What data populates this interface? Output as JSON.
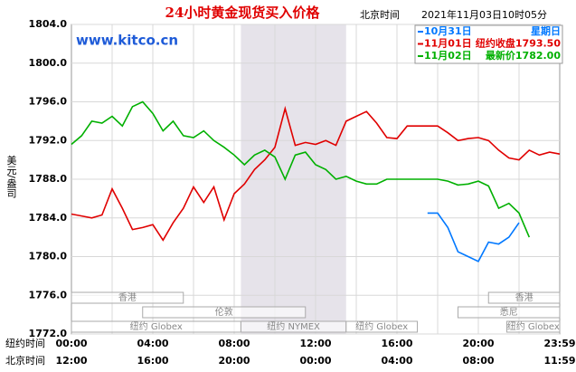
{
  "chart_data": {
    "type": "line",
    "title": "24小时黄金现货买入价格",
    "subtitle": "北京时间",
    "timestamp": "2021年11月03日10时05分",
    "watermark": "www.kitco.cn",
    "y_label": "美元/盎司",
    "x_row_label": "纽约时间",
    "x2_row_label": "北京时间",
    "xlim": [
      0,
      24
    ],
    "ylim": [
      1772,
      1804
    ],
    "yticks": [
      {
        "value": 1772,
        "label": "1772.0"
      },
      {
        "value": 1776,
        "label": "1776.0"
      },
      {
        "value": 1780,
        "label": "1780.0"
      },
      {
        "value": 1784,
        "label": "1784.0"
      },
      {
        "value": 1788,
        "label": "1788.0"
      },
      {
        "value": 1792,
        "label": "1792.0"
      },
      {
        "value": 1796,
        "label": "1796.0"
      },
      {
        "value": 1800,
        "label": "1800.0"
      },
      {
        "value": 1804,
        "label": "1804.0"
      }
    ],
    "xgrid": [
      2,
      4,
      6,
      8,
      10,
      12,
      14,
      16,
      18,
      20,
      22
    ],
    "xticks": [
      {
        "value": 0,
        "label": "00:00"
      },
      {
        "value": 4,
        "label": "04:00"
      },
      {
        "value": 8,
        "label": "08:00"
      },
      {
        "value": 12,
        "label": "12:00"
      },
      {
        "value": 16,
        "label": "16:00"
      },
      {
        "value": 20,
        "label": "20:00"
      },
      {
        "value": 24,
        "label": "23:59"
      }
    ],
    "x2ticks": [
      {
        "value": 0,
        "label": "12:00"
      },
      {
        "value": 4,
        "label": "16:00"
      },
      {
        "value": 8,
        "label": "20:00"
      },
      {
        "value": 12,
        "label": "00:00"
      },
      {
        "value": 16,
        "label": "04:00"
      },
      {
        "value": 20,
        "label": "08:00"
      },
      {
        "value": 24,
        "label": "11:59"
      }
    ],
    "shaded_span": [
      8.33,
      13.5
    ],
    "sessions": [
      {
        "name": "香港",
        "start": 0,
        "end": 5.5,
        "row": 0
      },
      {
        "name": "香港",
        "start": 20.5,
        "end": 24,
        "row": 0
      },
      {
        "name": "伦敦",
        "start": 3.5,
        "end": 11.5,
        "row": 1
      },
      {
        "name": "悉尼",
        "start": 19,
        "end": 24,
        "row": 1
      },
      {
        "name": "纽约 Globex",
        "start": 0,
        "end": 8.33,
        "row": 2
      },
      {
        "name": "纽约 NYMEX",
        "start": 8.33,
        "end": 13.5,
        "row": 2
      },
      {
        "name": "纽约 Globex",
        "start": 13.5,
        "end": 17,
        "row": 2
      },
      {
        "name": "纽约 Globex",
        "start": 21.4,
        "end": 24,
        "row": 2
      }
    ],
    "x": [
      0,
      0.5,
      1,
      1.5,
      2,
      2.5,
      3,
      3.5,
      4,
      4.5,
      5,
      5.5,
      6,
      6.5,
      7,
      7.5,
      8,
      8.5,
      9,
      9.5,
      10,
      10.5,
      11,
      11.5,
      12,
      12.5,
      13,
      13.5,
      14,
      14.5,
      15,
      15.5,
      16,
      16.5,
      17,
      17.5,
      18,
      18.5,
      19,
      19.5,
      20,
      20.5,
      21,
      21.5,
      22,
      22.5,
      23,
      23.5,
      24
    ],
    "series": [
      {
        "name": "10月31日",
        "note": "星期日",
        "color": "#0078ff",
        "values": [
          null,
          null,
          null,
          null,
          null,
          null,
          null,
          null,
          null,
          null,
          null,
          null,
          null,
          null,
          null,
          null,
          null,
          null,
          null,
          null,
          null,
          null,
          null,
          null,
          null,
          null,
          null,
          null,
          null,
          null,
          null,
          null,
          null,
          null,
          null,
          1784.5,
          1784.5,
          1783.0,
          1780.5,
          1780.0,
          1779.5,
          1781.5,
          1781.3,
          1782.0,
          1783.5,
          null,
          null,
          null,
          null
        ]
      },
      {
        "name": "11月01日",
        "note": "纽约收盘1793.50",
        "color": "#e00000",
        "values": [
          1784.4,
          1784.2,
          1784.0,
          1784.3,
          1787.0,
          1785.0,
          1782.8,
          1783.0,
          1783.3,
          1781.7,
          1783.5,
          1785.0,
          1787.2,
          1785.6,
          1787.2,
          1783.8,
          1786.5,
          1787.5,
          1789.0,
          1790.0,
          1791.3,
          1795.3,
          1791.5,
          1791.8,
          1791.6,
          1792.0,
          1791.5,
          1794.0,
          1794.5,
          1795.0,
          1793.8,
          1792.3,
          1792.2,
          1793.5,
          1793.5,
          1793.5,
          1793.5,
          1792.8,
          1792.0,
          1792.2,
          1792.3,
          1792.0,
          1791.0,
          1790.2,
          1790.0,
          1791.0,
          1790.5,
          1790.8,
          1790.6
        ]
      },
      {
        "name": "11月02日",
        "note": "最新价1782.00",
        "color": "#00b000",
        "values": [
          1791.6,
          1792.5,
          1794.0,
          1793.8,
          1794.5,
          1793.5,
          1795.5,
          1796.0,
          1794.8,
          1793.0,
          1794.0,
          1792.5,
          1792.3,
          1793.0,
          1792.0,
          1791.3,
          1790.5,
          1789.5,
          1790.5,
          1791.0,
          1790.3,
          1788.0,
          1790.5,
          1790.8,
          1789.5,
          1789.0,
          1788.0,
          1788.3,
          1787.8,
          1787.5,
          1787.5,
          1788.0,
          1788.0,
          1788.0,
          1788.0,
          1788.0,
          1788.0,
          1787.8,
          1787.4,
          1787.5,
          1787.8,
          1787.3,
          1785.0,
          1785.5,
          1784.5,
          1782.0,
          null,
          null,
          null
        ]
      }
    ]
  }
}
